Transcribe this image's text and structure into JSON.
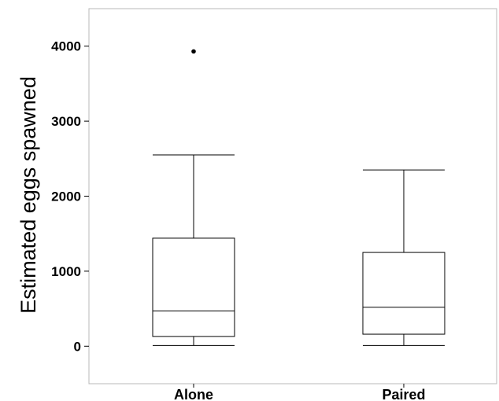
{
  "chart_data": {
    "type": "boxplot",
    "title": "",
    "xlabel": "",
    "ylabel": "Estimated eggs spawned",
    "ylim": [
      -500,
      4500
    ],
    "yticks": [
      0,
      1000,
      2000,
      3000,
      4000
    ],
    "ytick_labels": [
      "0",
      "1000",
      "2000",
      "3000",
      "4000"
    ],
    "grid": false,
    "legend": "none",
    "categories": [
      "Alone",
      "Paired"
    ],
    "series": [
      {
        "category": "Alone",
        "whisker_low": 10,
        "q1": 130,
        "median": 470,
        "q3": 1440,
        "whisker_high": 2550,
        "outliers": [
          3930
        ]
      },
      {
        "category": "Paired",
        "whisker_low": 10,
        "q1": 160,
        "median": 520,
        "q3": 1250,
        "whisker_high": 2350,
        "outliers": []
      }
    ],
    "colors": {
      "stroke": "#000000",
      "frame": "#b8b8b8",
      "fill": "#ffffff"
    }
  }
}
